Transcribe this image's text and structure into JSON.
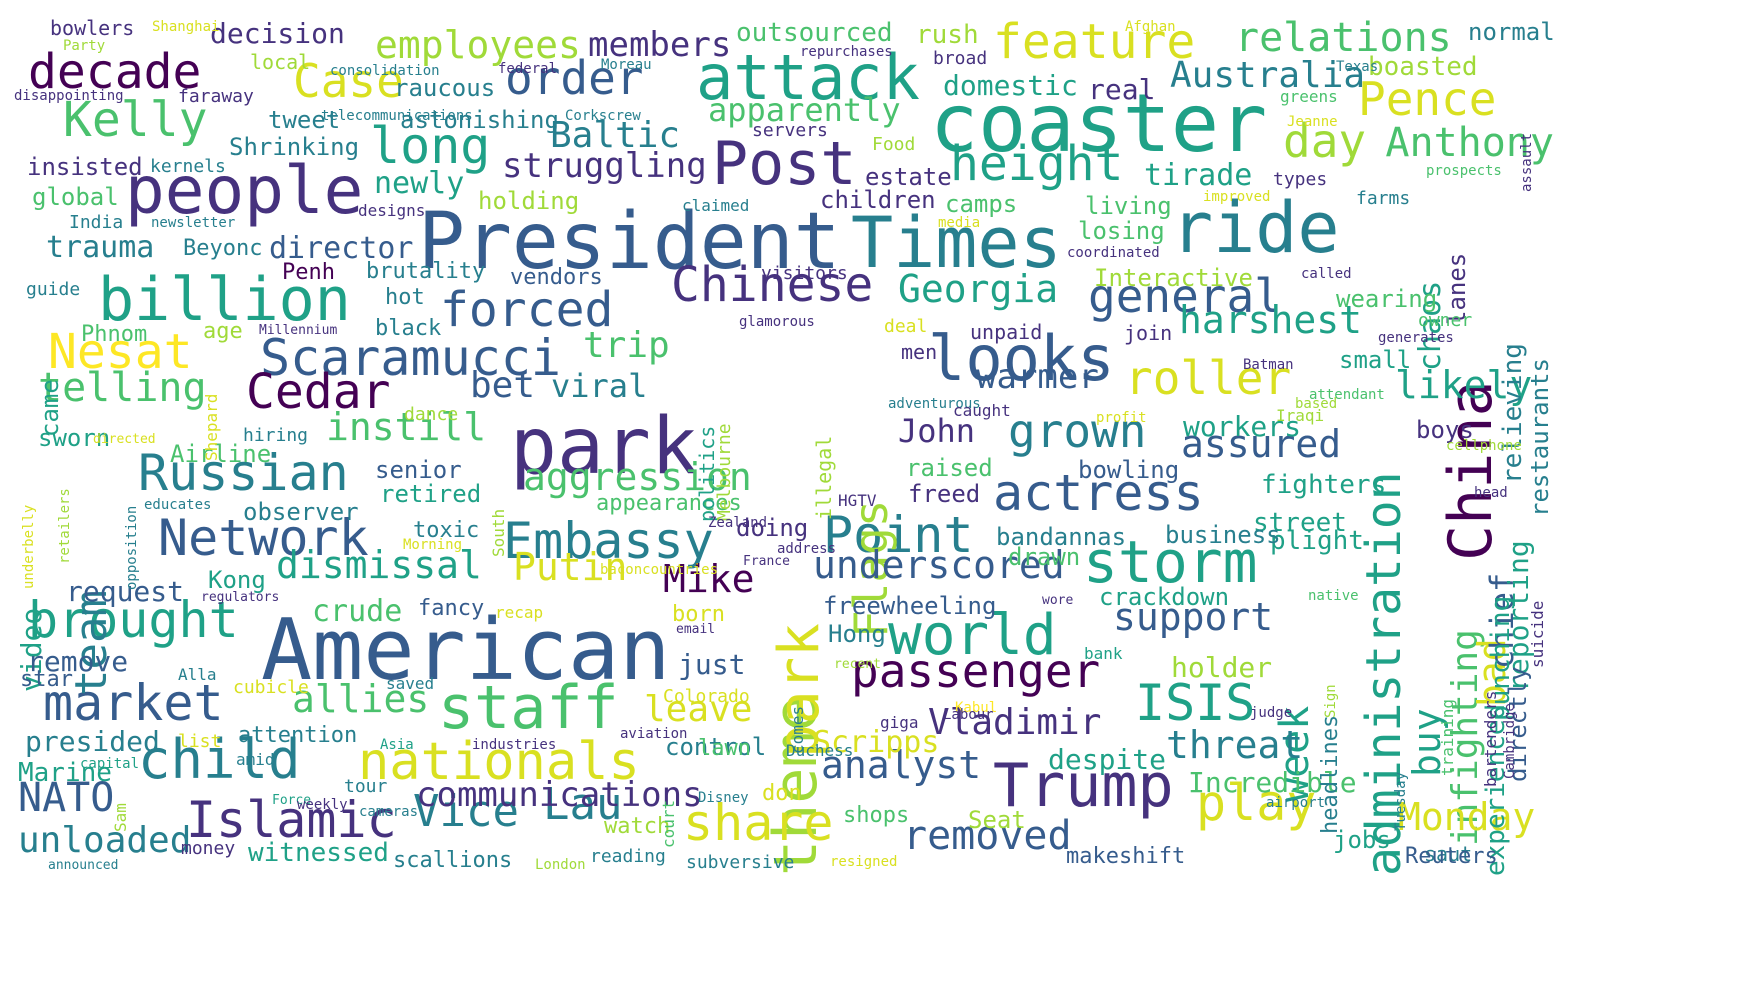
{
  "palette": [
    "#440154",
    "#46327e",
    "#365c8d",
    "#277f8e",
    "#1fa187",
    "#4ac16d",
    "#a0da39",
    "#d9e021",
    "#fde725"
  ],
  "words": [
    {
      "text": "President",
      "color": "#365c8d"
    },
    {
      "text": "American",
      "color": "#365c8d"
    },
    {
      "text": "coaster",
      "color": "#1fa187"
    },
    {
      "text": "park",
      "color": "#46327e"
    },
    {
      "text": "Times",
      "color": "#277f8e"
    },
    {
      "text": "ride",
      "color": "#277f8e"
    },
    {
      "text": "theme",
      "color": "#a0da39"
    },
    {
      "text": "park",
      "color": "#d9e021"
    },
    {
      "text": "billion",
      "color": "#1fa187"
    },
    {
      "text": "people",
      "color": "#46327e"
    },
    {
      "text": "attack",
      "color": "#1fa187"
    },
    {
      "text": "Post",
      "color": "#46327e"
    },
    {
      "text": "looks",
      "color": "#365c8d"
    },
    {
      "text": "China",
      "color": "#440154"
    },
    {
      "text": "Trump",
      "color": "#46327e"
    },
    {
      "text": "storm",
      "color": "#1fa187"
    },
    {
      "text": "world",
      "color": "#1fa187"
    },
    {
      "text": "staff",
      "color": "#4ac16d"
    },
    {
      "text": "child",
      "color": "#277f8e"
    },
    {
      "text": "nationals",
      "color": "#d9e021"
    },
    {
      "text": "Network",
      "color": "#365c8d"
    },
    {
      "text": "Scaramucci",
      "color": "#365c8d"
    },
    {
      "text": "Russian",
      "color": "#277f8e"
    },
    {
      "text": "Islamic",
      "color": "#46327e"
    },
    {
      "text": "share",
      "color": "#d9e021"
    },
    {
      "text": "Embassy",
      "color": "#277f8e"
    },
    {
      "text": "actress",
      "color": "#365c8d"
    },
    {
      "text": "administration",
      "color": "#1fa187"
    },
    {
      "text": "Point",
      "color": "#277f8e"
    },
    {
      "text": "feature",
      "color": "#d9e021"
    },
    {
      "text": "height",
      "color": "#1fa187"
    },
    {
      "text": "Chinese",
      "color": "#46327e"
    },
    {
      "text": "forced",
      "color": "#365c8d"
    },
    {
      "text": "long",
      "color": "#1fa187"
    },
    {
      "text": "brought",
      "color": "#1fa187"
    },
    {
      "text": "market",
      "color": "#365c8d"
    },
    {
      "text": "Nesat",
      "color": "#fde725"
    },
    {
      "text": "Cedar",
      "color": "#440154"
    },
    {
      "text": "decade",
      "color": "#440154"
    },
    {
      "text": "Kelly",
      "color": "#4ac16d"
    },
    {
      "text": "general",
      "color": "#365c8d"
    },
    {
      "text": "grown",
      "color": "#277f8e"
    },
    {
      "text": "passenger",
      "color": "#440154"
    },
    {
      "text": "ISIS",
      "color": "#1fa187"
    },
    {
      "text": "play",
      "color": "#d9e021"
    },
    {
      "text": "Flags",
      "color": "#a0da39"
    },
    {
      "text": "team",
      "color": "#277f8e"
    },
    {
      "text": "roller",
      "color": "#d9e021"
    },
    {
      "text": "order",
      "color": "#365c8d"
    },
    {
      "text": "Case",
      "color": "#d9e021"
    },
    {
      "text": "Pence",
      "color": "#d9e021"
    },
    {
      "text": "day",
      "color": "#a0da39"
    },
    {
      "text": "Anthony",
      "color": "#4ac16d"
    },
    {
      "text": "aggression",
      "color": "#4ac16d"
    },
    {
      "text": "Georgia",
      "color": "#1fa187"
    },
    {
      "text": "week",
      "color": "#1fa187"
    },
    {
      "text": "buy",
      "color": "#1fa187"
    },
    {
      "text": "infighting",
      "color": "#4ac16d"
    },
    {
      "text": "Vladimir",
      "color": "#46327e"
    },
    {
      "text": "Lau",
      "color": "#277f8e"
    },
    {
      "text": "Vice",
      "color": "#277f8e"
    },
    {
      "text": "removed",
      "color": "#365c8d"
    },
    {
      "text": "analyst",
      "color": "#365c8d"
    },
    {
      "text": "threat",
      "color": "#277f8e"
    },
    {
      "text": "support",
      "color": "#365c8d"
    },
    {
      "text": "underscored",
      "color": "#365c8d"
    },
    {
      "text": "dismissal",
      "color": "#1fa187"
    },
    {
      "text": "Putin",
      "color": "#d9e021"
    },
    {
      "text": "Mike",
      "color": "#440154"
    },
    {
      "text": "allies",
      "color": "#4ac16d"
    },
    {
      "text": "instill",
      "color": "#4ac16d"
    },
    {
      "text": "telling",
      "color": "#4ac16d"
    },
    {
      "text": "harshest",
      "color": "#1fa187"
    },
    {
      "text": "assured",
      "color": "#365c8d"
    },
    {
      "text": "likely",
      "color": "#1fa187"
    },
    {
      "text": "Monday",
      "color": "#d9e021"
    },
    {
      "text": "bad",
      "color": "#d9e021"
    },
    {
      "text": "chaos",
      "color": "#1fa187"
    },
    {
      "text": "warmer",
      "color": "#365c8d"
    },
    {
      "text": "relations",
      "color": "#4ac16d"
    },
    {
      "text": "employees",
      "color": "#a0da39"
    },
    {
      "text": "Australia",
      "color": "#277f8e"
    },
    {
      "text": "Baltic",
      "color": "#277f8e"
    },
    {
      "text": "struggling",
      "color": "#46327e"
    },
    {
      "text": "members",
      "color": "#46327e"
    },
    {
      "text": "apparently",
      "color": "#4ac16d"
    },
    {
      "text": "NATO",
      "color": "#365c8d"
    },
    {
      "text": "unloaded",
      "color": "#277f8e"
    },
    {
      "text": "communications",
      "color": "#46327e"
    },
    {
      "text": "chief",
      "color": "#365c8d"
    },
    {
      "text": "trip",
      "color": "#4ac16d"
    },
    {
      "text": "bet",
      "color": "#365c8d"
    },
    {
      "text": "viral",
      "color": "#277f8e"
    },
    {
      "text": "John",
      "color": "#46327e"
    },
    {
      "text": "leave",
      "color": "#d9e021"
    },
    {
      "text": "Scripps",
      "color": "#d9e021"
    },
    {
      "text": "presided",
      "color": "#277f8e"
    },
    {
      "text": "reporting",
      "color": "#1fa187"
    },
    {
      "text": "video",
      "color": "#1fa187"
    },
    {
      "text": "trauma",
      "color": "#277f8e"
    },
    {
      "text": "director",
      "color": "#365c8d"
    },
    {
      "text": "remove",
      "color": "#365c8d"
    },
    {
      "text": "request",
      "color": "#365c8d"
    },
    {
      "text": "crude",
      "color": "#4ac16d"
    },
    {
      "text": "Marine",
      "color": "#1fa187"
    },
    {
      "text": "witnessed",
      "color": "#1fa187"
    },
    {
      "text": "despite",
      "color": "#1fa187"
    },
    {
      "text": "Incredible",
      "color": "#4ac16d"
    },
    {
      "text": "workers",
      "color": "#1fa187"
    },
    {
      "text": "holder",
      "color": "#a0da39"
    },
    {
      "text": "just",
      "color": "#365c8d"
    },
    {
      "text": "control",
      "color": "#277f8e"
    },
    {
      "text": "tirade",
      "color": "#1fa187"
    },
    {
      "text": "newly",
      "color": "#1fa187"
    },
    {
      "text": "domestic",
      "color": "#1fa187"
    },
    {
      "text": "real",
      "color": "#46327e"
    },
    {
      "text": "boasted",
      "color": "#a0da39"
    },
    {
      "text": "decision",
      "color": "#46327e"
    },
    {
      "text": "outsourced",
      "color": "#4ac16d"
    },
    {
      "text": "rush",
      "color": "#a0da39"
    },
    {
      "text": "normal",
      "color": "#277f8e"
    },
    {
      "text": "astonishing",
      "color": "#277f8e"
    },
    {
      "text": "raucous",
      "color": "#277f8e"
    },
    {
      "text": "Shrinking",
      "color": "#277f8e"
    },
    {
      "text": "tweet",
      "color": "#277f8e"
    },
    {
      "text": "insisted",
      "color": "#46327e"
    },
    {
      "text": "global",
      "color": "#4ac16d"
    },
    {
      "text": "holding",
      "color": "#a0da39"
    },
    {
      "text": "estate",
      "color": "#46327e"
    },
    {
      "text": "children",
      "color": "#46327e"
    },
    {
      "text": "camps",
      "color": "#4ac16d"
    },
    {
      "text": "living",
      "color": "#4ac16d"
    },
    {
      "text": "losing",
      "color": "#4ac16d"
    },
    {
      "text": "Interactive",
      "color": "#a0da39"
    },
    {
      "text": "wearing",
      "color": "#4ac16d"
    },
    {
      "text": "small",
      "color": "#1fa187"
    },
    {
      "text": "fighters",
      "color": "#1fa187"
    },
    {
      "text": "street",
      "color": "#1fa187"
    },
    {
      "text": "plight",
      "color": "#1fa187"
    },
    {
      "text": "boys",
      "color": "#46327e"
    },
    {
      "text": "punching",
      "color": "#1fa187"
    },
    {
      "text": "experienced",
      "color": "#1fa187"
    },
    {
      "text": "directly",
      "color": "#365c8d"
    },
    {
      "text": "relieving",
      "color": "#277f8e"
    },
    {
      "text": "restaurants",
      "color": "#277f8e"
    },
    {
      "text": "lanes",
      "color": "#46327e"
    },
    {
      "text": "crackdown",
      "color": "#1fa187"
    },
    {
      "text": "freewheeling",
      "color": "#365c8d"
    },
    {
      "text": "Hong",
      "color": "#277f8e"
    },
    {
      "text": "Kong",
      "color": "#1fa187"
    },
    {
      "text": "doing",
      "color": "#46327e"
    },
    {
      "text": "business",
      "color": "#277f8e"
    },
    {
      "text": "bandannas",
      "color": "#277f8e"
    },
    {
      "text": "drawn",
      "color": "#4ac16d"
    },
    {
      "text": "raised",
      "color": "#4ac16d"
    },
    {
      "text": "freed",
      "color": "#46327e"
    },
    {
      "text": "bowling",
      "color": "#365c8d"
    },
    {
      "text": "senior",
      "color": "#365c8d"
    },
    {
      "text": "retired",
      "color": "#1fa187"
    },
    {
      "text": "observer",
      "color": "#277f8e"
    },
    {
      "text": "Airline",
      "color": "#4ac16d"
    },
    {
      "text": "sworn",
      "color": "#1fa187"
    },
    {
      "text": "came",
      "color": "#1fa187"
    },
    {
      "text": "Phnom",
      "color": "#4ac16d"
    },
    {
      "text": "Penh",
      "color": "#440154"
    },
    {
      "text": "brutality",
      "color": "#277f8e"
    },
    {
      "text": "vendors",
      "color": "#365c8d"
    },
    {
      "text": "black",
      "color": "#277f8e"
    },
    {
      "text": "hot",
      "color": "#277f8e"
    },
    {
      "text": "age",
      "color": "#a0da39"
    },
    {
      "text": "Beyonc",
      "color": "#277f8e"
    },
    {
      "text": "toxic",
      "color": "#277f8e"
    },
    {
      "text": "appearances",
      "color": "#4ac16d"
    },
    {
      "text": "fancy",
      "color": "#365c8d"
    },
    {
      "text": "attention",
      "color": "#277f8e"
    },
    {
      "text": "born",
      "color": "#d9e021"
    },
    {
      "text": "lawn",
      "color": "#4ac16d"
    },
    {
      "text": "don",
      "color": "#d9e021"
    },
    {
      "text": "shops",
      "color": "#4ac16d"
    },
    {
      "text": "Seat",
      "color": "#a0da39"
    },
    {
      "text": "makeshift",
      "color": "#365c8d"
    },
    {
      "text": "jobs",
      "color": "#1fa187"
    },
    {
      "text": "saut",
      "color": "#277f8e"
    },
    {
      "text": "Reuters",
      "color": "#365c8d"
    },
    {
      "text": "headlines",
      "color": "#277f8e"
    },
    {
      "text": "watch",
      "color": "#a0da39"
    },
    {
      "text": "scallions",
      "color": "#277f8e"
    },
    {
      "text": "money",
      "color": "#46327e"
    },
    {
      "text": "star",
      "color": "#365c8d"
    },
    {
      "text": "bowlers",
      "color": "#46327e"
    },
    {
      "text": "visitors",
      "color": "#46327e"
    },
    {
      "text": "unpaid",
      "color": "#46327e"
    },
    {
      "text": "men",
      "color": "#46327e"
    },
    {
      "text": "join",
      "color": "#46327e"
    },
    {
      "text": "owner",
      "color": "#4ac16d"
    },
    {
      "text": "local",
      "color": "#a0da39"
    },
    {
      "text": "greens",
      "color": "#4ac16d"
    },
    {
      "text": "farms",
      "color": "#277f8e"
    },
    {
      "text": "types",
      "color": "#46327e"
    },
    {
      "text": "designs",
      "color": "#46327e"
    },
    {
      "text": "guide",
      "color": "#277f8e"
    },
    {
      "text": "India",
      "color": "#277f8e"
    },
    {
      "text": "hiring",
      "color": "#277f8e"
    },
    {
      "text": "politics",
      "color": "#1fa187"
    },
    {
      "text": "Melbourne",
      "color": "#a0da39"
    },
    {
      "text": "illegal",
      "color": "#a0da39"
    },
    {
      "text": "comes",
      "color": "#277f8e"
    },
    {
      "text": "Food",
      "color": "#a0da39"
    },
    {
      "text": "servers",
      "color": "#46327e"
    },
    {
      "text": "faraway",
      "color": "#46327e"
    },
    {
      "text": "kernels",
      "color": "#277f8e"
    },
    {
      "text": "broad",
      "color": "#46327e"
    },
    {
      "text": "deal",
      "color": "#d9e021"
    },
    {
      "text": "dance",
      "color": "#a0da39"
    },
    {
      "text": "Shepard",
      "color": "#d9e021"
    },
    {
      "text": "South",
      "color": "#a0da39"
    },
    {
      "text": "HGTV",
      "color": "#46327e"
    },
    {
      "text": "cubicle",
      "color": "#d9e021"
    },
    {
      "text": "saved",
      "color": "#277f8e"
    },
    {
      "text": "list",
      "color": "#d9e021"
    },
    {
      "text": "amid",
      "color": "#277f8e"
    },
    {
      "text": "Alla",
      "color": "#277f8e"
    },
    {
      "text": "Colorado",
      "color": "#d9e021"
    },
    {
      "text": "Duchess",
      "color": "#277f8e"
    },
    {
      "text": "giga",
      "color": "#46327e"
    },
    {
      "text": "Kabul",
      "color": "#fde725"
    },
    {
      "text": "court",
      "color": "#4ac16d"
    },
    {
      "text": "Disney",
      "color": "#277f8e"
    },
    {
      "text": "reading",
      "color": "#277f8e"
    },
    {
      "text": "subversive",
      "color": "#277f8e"
    },
    {
      "text": "resigned",
      "color": "#d9e021"
    },
    {
      "text": "London",
      "color": "#a0da39"
    },
    {
      "text": "announced",
      "color": "#277f8e"
    },
    {
      "text": "Sam",
      "color": "#a0da39"
    },
    {
      "text": "capital",
      "color": "#1fa187"
    },
    {
      "text": "Force",
      "color": "#1fa187"
    },
    {
      "text": "weekly",
      "color": "#46327e"
    },
    {
      "text": "tour",
      "color": "#277f8e"
    },
    {
      "text": "cameras",
      "color": "#277f8e"
    },
    {
      "text": "industries",
      "color": "#46327e"
    },
    {
      "text": "Asia",
      "color": "#1fa187"
    },
    {
      "text": "aviation",
      "color": "#46327e"
    },
    {
      "text": "Labour",
      "color": "#46327e"
    },
    {
      "text": "judge",
      "color": "#46327e"
    },
    {
      "text": "airport",
      "color": "#277f8e"
    },
    {
      "text": "Tuesday",
      "color": "#277f8e"
    },
    {
      "text": "Sign",
      "color": "#a0da39"
    },
    {
      "text": "training",
      "color": "#4ac16d"
    },
    {
      "text": "bartenders",
      "color": "#46327e"
    },
    {
      "text": "Cambridge",
      "color": "#46327e"
    },
    {
      "text": "suicide",
      "color": "#46327e"
    },
    {
      "text": "head",
      "color": "#46327e"
    },
    {
      "text": "cellphone",
      "color": "#a0da39"
    },
    {
      "text": "Iraqi",
      "color": "#a0da39"
    },
    {
      "text": "attendant",
      "color": "#4ac16d"
    },
    {
      "text": "profit",
      "color": "#d9e021"
    },
    {
      "text": "based",
      "color": "#a0da39"
    },
    {
      "text": "Batman",
      "color": "#46327e"
    },
    {
      "text": "generates",
      "color": "#46327e"
    },
    {
      "text": "called",
      "color": "#46327e"
    },
    {
      "text": "coordinated",
      "color": "#46327e"
    },
    {
      "text": "media",
      "color": "#d9e021"
    },
    {
      "text": "improved",
      "color": "#d9e021"
    },
    {
      "text": "prospects",
      "color": "#4ac16d"
    },
    {
      "text": "assault",
      "color": "#46327e"
    },
    {
      "text": "Jeanne",
      "color": "#d9e021"
    },
    {
      "text": "Texas",
      "color": "#277f8e"
    },
    {
      "text": "Afghan",
      "color": "#d9e021"
    },
    {
      "text": "repurchases",
      "color": "#46327e"
    },
    {
      "text": "Moreau",
      "color": "#277f8e"
    },
    {
      "text": "federal",
      "color": "#46327e"
    },
    {
      "text": "consolidation",
      "color": "#277f8e"
    },
    {
      "text": "Corkscrew",
      "color": "#277f8e"
    },
    {
      "text": "telecommunications",
      "color": "#277f8e"
    },
    {
      "text": "disappointing",
      "color": "#46327e"
    },
    {
      "text": "Party",
      "color": "#a0da39"
    },
    {
      "text": "Shanghai",
      "color": "#d9e021"
    },
    {
      "text": "newsletter",
      "color": "#277f8e"
    },
    {
      "text": "Millennium",
      "color": "#46327e"
    },
    {
      "text": "glamorous",
      "color": "#46327e"
    },
    {
      "text": "claimed",
      "color": "#277f8e"
    },
    {
      "text": "adventurous",
      "color": "#277f8e"
    },
    {
      "text": "caught",
      "color": "#46327e"
    },
    {
      "text": "directed",
      "color": "#d9e021"
    },
    {
      "text": "underbelly",
      "color": "#d9e021"
    },
    {
      "text": "retailers",
      "color": "#a0da39"
    },
    {
      "text": "opposition",
      "color": "#277f8e"
    },
    {
      "text": "educates",
      "color": "#277f8e"
    },
    {
      "text": "Morning",
      "color": "#d9e021"
    },
    {
      "text": "address",
      "color": "#46327e"
    },
    {
      "text": "France",
      "color": "#46327e"
    },
    {
      "text": "Zealand",
      "color": "#46327e"
    },
    {
      "text": "baconcountries",
      "color": "#d9e021"
    },
    {
      "text": "recap",
      "color": "#d9e021"
    },
    {
      "text": "regulators",
      "color": "#46327e"
    },
    {
      "text": "email",
      "color": "#46327e"
    },
    {
      "text": "wore",
      "color": "#46327e"
    },
    {
      "text": "native",
      "color": "#4ac16d"
    },
    {
      "text": "bank",
      "color": "#1fa187"
    },
    {
      "text": "recent",
      "color": "#a0da39"
    }
  ]
}
